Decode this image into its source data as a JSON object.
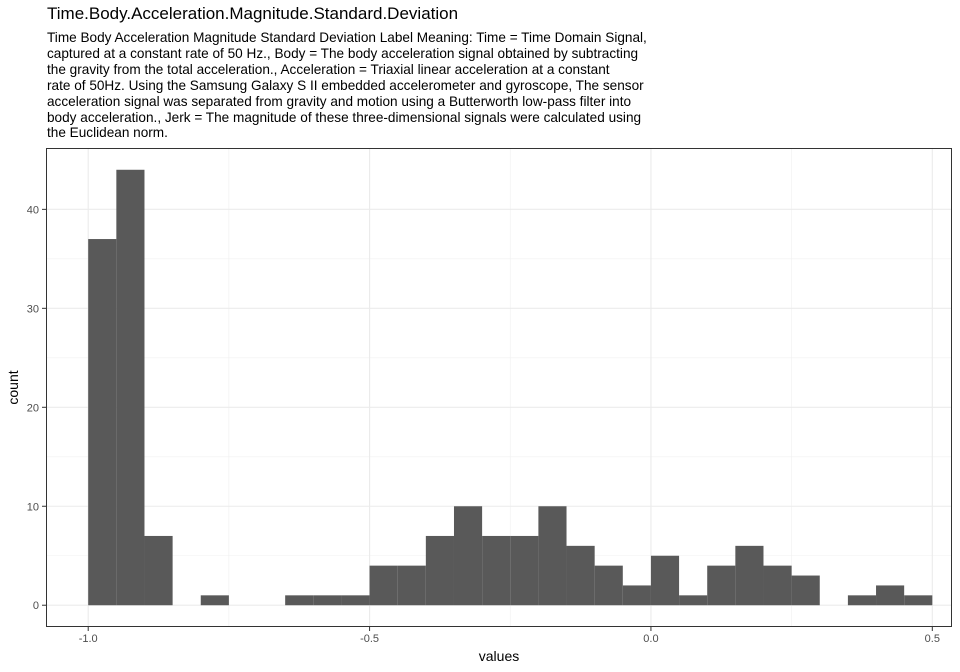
{
  "chart_data": {
    "type": "bar",
    "title": "Time.Body.Acceleration.Magnitude.Standard.Deviation",
    "subtitle": "Time Body Acceleration Magnitude Standard Deviation Label Meaning: Time = Time Domain Signal,\ncaptured at a constant rate of 50 Hz., Body = The body acceleration signal obtained by subtracting\nthe gravity from the total acceleration., Acceleration = Triaxial linear acceleration at a constant\nrate of 50Hz. Using the Samsung Galaxy S II embedded accelerometer and gyroscope, The sensor\nacceleration signal was separated from gravity and motion using a Butterworth low-pass filter into\nbody acceleration., Jerk = The magnitude of these three-dimensional signals were calculated using\nthe Euclidean norm.",
    "xlabel": "values",
    "ylabel": "count",
    "xlim": [
      -1.075,
      0.535
    ],
    "ylim": [
      -2.2,
      46.2
    ],
    "xticks": [
      -1.0,
      -0.5,
      0.0,
      0.5
    ],
    "xtick_labels": [
      "-1.0",
      "-0.5",
      "0.0",
      "0.5"
    ],
    "yticks": [
      0,
      10,
      20,
      30,
      40
    ],
    "ytick_labels": [
      "0",
      "10",
      "20",
      "30",
      "40"
    ],
    "grid": true,
    "bar_color": "#595959",
    "bins": [
      {
        "x0": -1.0,
        "x1": -0.95,
        "count": 37
      },
      {
        "x0": -0.95,
        "x1": -0.9,
        "count": 44
      },
      {
        "x0": -0.9,
        "x1": -0.85,
        "count": 7
      },
      {
        "x0": -0.85,
        "x1": -0.8,
        "count": 0
      },
      {
        "x0": -0.8,
        "x1": -0.75,
        "count": 1
      },
      {
        "x0": -0.75,
        "x1": -0.7,
        "count": 0
      },
      {
        "x0": -0.7,
        "x1": -0.65,
        "count": 0
      },
      {
        "x0": -0.65,
        "x1": -0.6,
        "count": 1
      },
      {
        "x0": -0.6,
        "x1": -0.55,
        "count": 1
      },
      {
        "x0": -0.55,
        "x1": -0.5,
        "count": 1
      },
      {
        "x0": -0.5,
        "x1": -0.45,
        "count": 4
      },
      {
        "x0": -0.45,
        "x1": -0.4,
        "count": 4
      },
      {
        "x0": -0.4,
        "x1": -0.35,
        "count": 7
      },
      {
        "x0": -0.35,
        "x1": -0.3,
        "count": 10
      },
      {
        "x0": -0.3,
        "x1": -0.25,
        "count": 7
      },
      {
        "x0": -0.25,
        "x1": -0.2,
        "count": 7
      },
      {
        "x0": -0.2,
        "x1": -0.15,
        "count": 10
      },
      {
        "x0": -0.15,
        "x1": -0.1,
        "count": 6
      },
      {
        "x0": -0.1,
        "x1": -0.05,
        "count": 4
      },
      {
        "x0": -0.05,
        "x1": 0.0,
        "count": 2
      },
      {
        "x0": 0.0,
        "x1": 0.05,
        "count": 5
      },
      {
        "x0": 0.05,
        "x1": 0.1,
        "count": 1
      },
      {
        "x0": 0.1,
        "x1": 0.15,
        "count": 4
      },
      {
        "x0": 0.15,
        "x1": 0.2,
        "count": 6
      },
      {
        "x0": 0.2,
        "x1": 0.25,
        "count": 4
      },
      {
        "x0": 0.25,
        "x1": 0.3,
        "count": 3
      },
      {
        "x0": 0.3,
        "x1": 0.35,
        "count": 0
      },
      {
        "x0": 0.35,
        "x1": 0.4,
        "count": 1
      },
      {
        "x0": 0.4,
        "x1": 0.45,
        "count": 2
      },
      {
        "x0": 0.45,
        "x1": 0.5,
        "count": 1
      }
    ]
  }
}
